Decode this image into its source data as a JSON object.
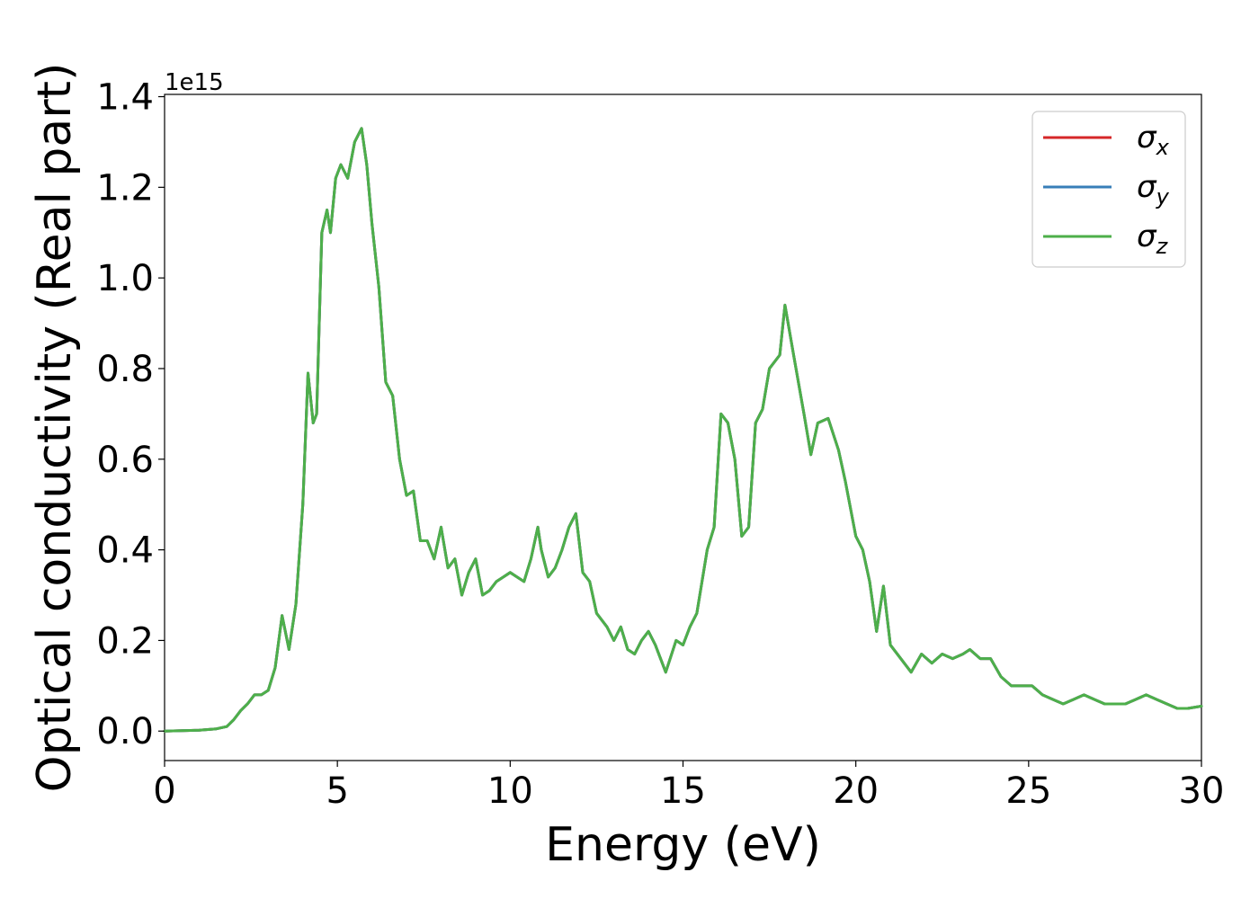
{
  "chart_data": {
    "type": "line",
    "xlabel": "Energy (eV)",
    "ylabel": "Optical conductivity (Real part)",
    "y_offset_label": "1e15",
    "xlim": [
      0,
      30
    ],
    "ylim": [
      -0.065,
      1.405
    ],
    "x_ticks": [
      0,
      5,
      10,
      15,
      20,
      25,
      30
    ],
    "x_tick_labels": [
      "0",
      "5",
      "10",
      "15",
      "20",
      "25",
      "30"
    ],
    "y_ticks": [
      0.0,
      0.2,
      0.4,
      0.6,
      0.8,
      1.0,
      1.2,
      1.4
    ],
    "y_tick_labels": [
      "0.0",
      "0.2",
      "0.4",
      "0.6",
      "0.8",
      "1.0",
      "1.2",
      "1.4"
    ],
    "grid": false,
    "legend_position": "top-right",
    "x": [
      0,
      1,
      1.5,
      1.8,
      2.0,
      2.2,
      2.4,
      2.6,
      2.8,
      3.0,
      3.2,
      3.4,
      3.6,
      3.8,
      4.0,
      4.15,
      4.3,
      4.4,
      4.55,
      4.7,
      4.8,
      4.95,
      5.1,
      5.3,
      5.5,
      5.7,
      5.85,
      6.0,
      6.2,
      6.4,
      6.6,
      6.8,
      7.0,
      7.2,
      7.4,
      7.6,
      7.8,
      8.0,
      8.2,
      8.4,
      8.6,
      8.8,
      9.0,
      9.2,
      9.4,
      9.6,
      9.8,
      10.0,
      10.2,
      10.4,
      10.6,
      10.8,
      10.9,
      11.1,
      11.3,
      11.5,
      11.7,
      11.9,
      12.1,
      12.3,
      12.5,
      12.8,
      13.0,
      13.2,
      13.4,
      13.6,
      13.8,
      14.0,
      14.2,
      14.5,
      14.8,
      15.0,
      15.2,
      15.4,
      15.7,
      15.9,
      16.1,
      16.3,
      16.5,
      16.7,
      16.9,
      17.1,
      17.3,
      17.5,
      17.8,
      17.95,
      18.2,
      18.5,
      18.7,
      18.9,
      19.2,
      19.5,
      19.7,
      20.0,
      20.2,
      20.4,
      20.6,
      20.8,
      21.0,
      21.3,
      21.6,
      21.9,
      22.2,
      22.5,
      22.8,
      23.1,
      23.3,
      23.6,
      23.9,
      24.2,
      24.5,
      24.8,
      25.1,
      25.4,
      25.7,
      26.0,
      26.3,
      26.6,
      26.9,
      27.2,
      27.5,
      27.8,
      28.1,
      28.4,
      28.7,
      29.0,
      29.3,
      29.6,
      30.0
    ],
    "series": [
      {
        "name": "σx",
        "symbol": "σ",
        "subscript": "x",
        "color": "#d62728",
        "values": [
          0.0,
          0.002,
          0.005,
          0.01,
          0.025,
          0.045,
          0.06,
          0.08,
          0.08,
          0.09,
          0.14,
          0.255,
          0.18,
          0.28,
          0.5,
          0.79,
          0.68,
          0.7,
          1.1,
          1.15,
          1.1,
          1.22,
          1.25,
          1.22,
          1.3,
          1.33,
          1.25,
          1.12,
          0.98,
          0.77,
          0.74,
          0.6,
          0.52,
          0.53,
          0.42,
          0.42,
          0.38,
          0.45,
          0.36,
          0.38,
          0.3,
          0.35,
          0.38,
          0.3,
          0.31,
          0.33,
          0.34,
          0.35,
          0.34,
          0.33,
          0.38,
          0.45,
          0.4,
          0.34,
          0.36,
          0.4,
          0.45,
          0.48,
          0.35,
          0.33,
          0.26,
          0.23,
          0.2,
          0.23,
          0.18,
          0.17,
          0.2,
          0.22,
          0.19,
          0.13,
          0.2,
          0.19,
          0.23,
          0.26,
          0.4,
          0.45,
          0.7,
          0.68,
          0.6,
          0.43,
          0.45,
          0.68,
          0.71,
          0.8,
          0.83,
          0.94,
          0.83,
          0.7,
          0.61,
          0.68,
          0.69,
          0.62,
          0.55,
          0.43,
          0.4,
          0.33,
          0.22,
          0.32,
          0.19,
          0.16,
          0.13,
          0.17,
          0.15,
          0.17,
          0.16,
          0.17,
          0.18,
          0.16,
          0.16,
          0.12,
          0.1,
          0.1,
          0.1,
          0.08,
          0.07,
          0.06,
          0.07,
          0.08,
          0.07,
          0.06,
          0.06,
          0.06,
          0.07,
          0.08,
          0.07,
          0.06,
          0.05,
          0.05,
          0.055
        ]
      },
      {
        "name": "σy",
        "symbol": "σ",
        "subscript": "y",
        "color": "#377eb8",
        "values": [
          0.0,
          0.002,
          0.005,
          0.01,
          0.025,
          0.045,
          0.06,
          0.08,
          0.08,
          0.09,
          0.14,
          0.255,
          0.18,
          0.28,
          0.5,
          0.79,
          0.68,
          0.7,
          1.1,
          1.15,
          1.1,
          1.22,
          1.25,
          1.22,
          1.3,
          1.33,
          1.25,
          1.12,
          0.98,
          0.77,
          0.74,
          0.6,
          0.52,
          0.53,
          0.42,
          0.42,
          0.38,
          0.45,
          0.36,
          0.38,
          0.3,
          0.35,
          0.38,
          0.3,
          0.31,
          0.33,
          0.34,
          0.35,
          0.34,
          0.33,
          0.38,
          0.45,
          0.4,
          0.34,
          0.36,
          0.4,
          0.45,
          0.48,
          0.35,
          0.33,
          0.26,
          0.23,
          0.2,
          0.23,
          0.18,
          0.17,
          0.2,
          0.22,
          0.19,
          0.13,
          0.2,
          0.19,
          0.23,
          0.26,
          0.4,
          0.45,
          0.7,
          0.68,
          0.6,
          0.43,
          0.45,
          0.68,
          0.71,
          0.8,
          0.83,
          0.94,
          0.83,
          0.7,
          0.61,
          0.68,
          0.69,
          0.62,
          0.55,
          0.43,
          0.4,
          0.33,
          0.22,
          0.32,
          0.19,
          0.16,
          0.13,
          0.17,
          0.15,
          0.17,
          0.16,
          0.17,
          0.18,
          0.16,
          0.16,
          0.12,
          0.1,
          0.1,
          0.1,
          0.08,
          0.07,
          0.06,
          0.07,
          0.08,
          0.07,
          0.06,
          0.06,
          0.06,
          0.07,
          0.08,
          0.07,
          0.06,
          0.05,
          0.05,
          0.055
        ]
      },
      {
        "name": "σz",
        "symbol": "σ",
        "subscript": "z",
        "color": "#4daf4a",
        "values": [
          0.0,
          0.002,
          0.005,
          0.01,
          0.025,
          0.045,
          0.06,
          0.08,
          0.08,
          0.09,
          0.14,
          0.255,
          0.18,
          0.28,
          0.5,
          0.79,
          0.68,
          0.7,
          1.1,
          1.15,
          1.1,
          1.22,
          1.25,
          1.22,
          1.3,
          1.33,
          1.25,
          1.12,
          0.98,
          0.77,
          0.74,
          0.6,
          0.52,
          0.53,
          0.42,
          0.42,
          0.38,
          0.45,
          0.36,
          0.38,
          0.3,
          0.35,
          0.38,
          0.3,
          0.31,
          0.33,
          0.34,
          0.35,
          0.34,
          0.33,
          0.38,
          0.45,
          0.4,
          0.34,
          0.36,
          0.4,
          0.45,
          0.48,
          0.35,
          0.33,
          0.26,
          0.23,
          0.2,
          0.23,
          0.18,
          0.17,
          0.2,
          0.22,
          0.19,
          0.13,
          0.2,
          0.19,
          0.23,
          0.26,
          0.4,
          0.45,
          0.7,
          0.68,
          0.6,
          0.43,
          0.45,
          0.68,
          0.71,
          0.8,
          0.83,
          0.94,
          0.83,
          0.7,
          0.61,
          0.68,
          0.69,
          0.62,
          0.55,
          0.43,
          0.4,
          0.33,
          0.22,
          0.32,
          0.19,
          0.16,
          0.13,
          0.17,
          0.15,
          0.17,
          0.16,
          0.17,
          0.18,
          0.16,
          0.16,
          0.12,
          0.1,
          0.1,
          0.1,
          0.08,
          0.07,
          0.06,
          0.07,
          0.08,
          0.07,
          0.06,
          0.06,
          0.06,
          0.07,
          0.08,
          0.07,
          0.06,
          0.05,
          0.05,
          0.055
        ]
      }
    ]
  }
}
